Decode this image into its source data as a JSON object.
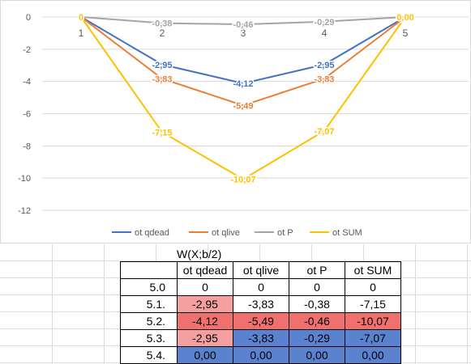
{
  "chart_data": {
    "type": "line",
    "x": [
      1,
      2,
      3,
      4,
      5
    ],
    "ylim": [
      -12,
      0
    ],
    "yticks": [
      0,
      -2,
      -4,
      -6,
      -8,
      -10,
      -12
    ],
    "grid": true,
    "legend": "bottom",
    "series": [
      {
        "name": "ot qdead",
        "color": "#4472c4",
        "values": [
          0,
          -2.95,
          -4.12,
          -2.95,
          0
        ],
        "labels": [
          "",
          "-2,95",
          "-4,12",
          "-2,95",
          ""
        ]
      },
      {
        "name": "ot qlive",
        "color": "#ed7d31",
        "values": [
          0,
          -3.83,
          -5.49,
          -3.83,
          0
        ],
        "labels": [
          "",
          "-3,83",
          "-5,49",
          "-3,83",
          ""
        ]
      },
      {
        "name": "ot P",
        "color": "#a5a5a5",
        "values": [
          0,
          -0.38,
          -0.46,
          -0.29,
          0
        ],
        "labels": [
          "",
          "-0,38",
          "-0,46",
          "-0,29",
          "0,00"
        ]
      },
      {
        "name": "ot SUM",
        "color": "#ffc000",
        "values": [
          0,
          -7.15,
          -10.07,
          -7.07,
          0
        ],
        "labels": [
          "0",
          "-7,15",
          "-10,07",
          "-7,07",
          "0,00"
        ]
      }
    ]
  },
  "table": {
    "title": "W(X;b/2)",
    "headers": [
      "ot qdead",
      "ot qlive",
      "ot P",
      "ot SUM"
    ],
    "rows": [
      {
        "label": "5.0",
        "cells": [
          "0",
          "0",
          "0",
          "0"
        ]
      },
      {
        "label": "5.1.",
        "cells": [
          "-2,95",
          "-3,83",
          "-0,38",
          "-7,15"
        ]
      },
      {
        "label": "5.2.",
        "cells": [
          "-4,12",
          "-5,49",
          "-0,46",
          "-10,07"
        ]
      },
      {
        "label": "5.3.",
        "cells": [
          "-2,95",
          "-3,83",
          "-0,29",
          "-7,07"
        ]
      },
      {
        "label": "5.4.",
        "cells": [
          "0,00",
          "0,00",
          "0,00",
          "0,00"
        ]
      }
    ],
    "fills": [
      [
        "",
        "",
        "",
        ""
      ],
      [
        "pink",
        "",
        "",
        ""
      ],
      [
        "red",
        "red",
        "red",
        "red"
      ],
      [
        "pink",
        "blue",
        "blue",
        "blue"
      ],
      [
        "blue",
        "blue",
        "blue",
        "blue"
      ]
    ]
  }
}
